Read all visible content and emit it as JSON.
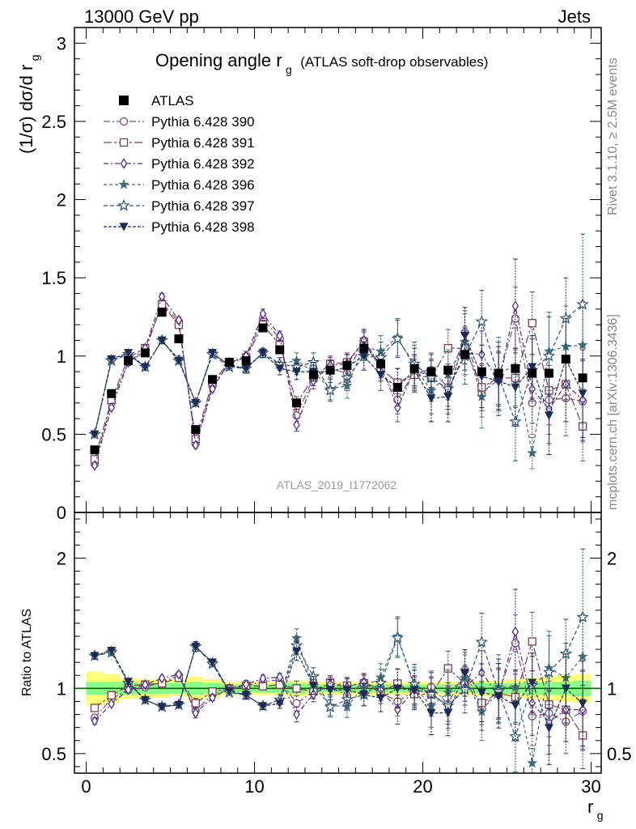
{
  "header": {
    "left": "13000 GeV pp",
    "right": "Jets"
  },
  "title": {
    "main": "Opening angle r",
    "sub": "g",
    "extra": "(ATLAS soft-drop observables)"
  },
  "watermark": "ATLAS_2019_I1772062",
  "side_text": {
    "top": "Rivet 3.1.10, ≥ 2.5M events",
    "bottom": "mcplots.cern.ch [arXiv:1306.3436]"
  },
  "axes": {
    "ylabel_main": "(1/σ) dσ/d r",
    "ylabel_main_sub": "g",
    "ylabel_ratio": "Ratio to ATLAS",
    "xlabel": "r",
    "xlabel_sub": "g"
  },
  "colors": {
    "atlas": "#000000",
    "s390": "#7a4b7c",
    "s391": "#7a3d52",
    "s392": "#4b2e86",
    "s396": "#456b78",
    "s397": "#2e5570",
    "s398": "#1e2a52",
    "band_inner": "#88ff88",
    "band_outer": "#ffff77",
    "ratio_line": "#006600"
  },
  "chart_data": {
    "type": "scatter",
    "x": [
      0.5,
      1.5,
      2.5,
      3.5,
      4.5,
      5.5,
      6.5,
      7.5,
      8.5,
      9.5,
      10.5,
      11.5,
      12.5,
      13.5,
      14.5,
      15.5,
      16.5,
      17.5,
      18.5,
      19.5,
      20.5,
      21.5,
      22.5,
      23.5,
      24.5,
      25.5,
      26.5,
      27.5,
      28.5,
      29.5
    ],
    "xlim": [
      -0.7,
      30.6
    ],
    "main_ylim": [
      0,
      3.1
    ],
    "ratio_ylim": [
      0.35,
      2.35
    ],
    "x_ticks": [
      "0",
      "10",
      "20",
      "30"
    ],
    "main_y_ticks": [
      "0",
      "0.5",
      "1",
      "1.5",
      "2",
      "2.5",
      "3"
    ],
    "ratio_y_ticks": [
      "0.5",
      "1",
      "2"
    ],
    "atlas": {
      "name": "ATLAS",
      "values": [
        0.4,
        0.76,
        0.97,
        1.02,
        1.28,
        1.11,
        0.53,
        0.85,
        0.96,
        0.97,
        1.18,
        1.04,
        0.7,
        0.88,
        0.91,
        0.94,
        1.05,
        0.95,
        0.8,
        0.92,
        0.9,
        0.91,
        1.01,
        0.9,
        0.89,
        0.92,
        0.89,
        0.89,
        0.98,
        0.86
      ],
      "band_inner": [
        0.05,
        0.05,
        0.05,
        0.04,
        0.04,
        0.04,
        0.05,
        0.04,
        0.03,
        0.03,
        0.03,
        0.03,
        0.04,
        0.03,
        0.03,
        0.03,
        0.03,
        0.03,
        0.03,
        0.03,
        0.03,
        0.03,
        0.03,
        0.04,
        0.04,
        0.04,
        0.05,
        0.05,
        0.05,
        0.06
      ],
      "band_outer": [
        0.13,
        0.11,
        0.08,
        0.07,
        0.07,
        0.06,
        0.09,
        0.07,
        0.05,
        0.05,
        0.05,
        0.05,
        0.06,
        0.05,
        0.05,
        0.05,
        0.05,
        0.05,
        0.05,
        0.05,
        0.05,
        0.05,
        0.05,
        0.06,
        0.06,
        0.07,
        0.08,
        0.09,
        0.1,
        0.11
      ]
    },
    "series": [
      {
        "name": "Pythia 6.428 390",
        "marker": "open-circle",
        "dash": "8,3,2,3",
        "values": [
          0.31,
          0.7,
          0.96,
          1.03,
          1.34,
          1.22,
          0.44,
          0.81,
          0.95,
          0.99,
          1.24,
          1.11,
          0.62,
          0.86,
          0.92,
          0.89,
          1.1,
          0.92,
          0.72,
          0.9,
          0.91,
          0.8,
          1.15,
          0.76,
          0.85,
          1.24,
          0.7,
          0.72,
          0.73,
          0.71
        ],
        "errors": [
          0.01,
          0.01,
          0.02,
          0.02,
          0.02,
          0.02,
          0.02,
          0.02,
          0.02,
          0.03,
          0.03,
          0.03,
          0.04,
          0.05,
          0.05,
          0.06,
          0.07,
          0.08,
          0.09,
          0.1,
          0.11,
          0.12,
          0.14,
          0.15,
          0.17,
          0.2,
          0.2,
          0.22,
          0.24,
          0.26
        ]
      },
      {
        "name": "Pythia 6.428 391",
        "marker": "open-square",
        "dash": "10,3,3,3",
        "values": [
          0.34,
          0.72,
          0.99,
          1.05,
          1.33,
          1.2,
          0.47,
          0.83,
          0.96,
          0.99,
          1.2,
          1.07,
          0.7,
          0.86,
          0.95,
          0.96,
          1.09,
          0.92,
          0.83,
          0.88,
          0.86,
          1.05,
          1.05,
          0.8,
          0.86,
          0.86,
          1.21,
          0.78,
          0.82,
          0.55
        ],
        "errors": [
          0.01,
          0.01,
          0.02,
          0.02,
          0.02,
          0.02,
          0.02,
          0.02,
          0.02,
          0.03,
          0.03,
          0.03,
          0.04,
          0.05,
          0.05,
          0.06,
          0.07,
          0.08,
          0.09,
          0.1,
          0.11,
          0.12,
          0.14,
          0.15,
          0.17,
          0.19,
          0.2,
          0.22,
          0.24,
          0.22
        ]
      },
      {
        "name": "Pythia 6.428 392",
        "marker": "open-diamond",
        "dash": "6,3,2,3",
        "values": [
          0.3,
          0.67,
          0.96,
          1.05,
          1.38,
          1.23,
          0.43,
          0.79,
          0.96,
          1.0,
          1.27,
          1.13,
          0.56,
          0.84,
          0.94,
          0.95,
          1.1,
          0.94,
          0.67,
          0.91,
          0.87,
          0.78,
          1.02,
          1.01,
          0.84,
          1.32,
          0.79,
          0.66,
          0.82,
          0.72
        ],
        "errors": [
          0.01,
          0.01,
          0.02,
          0.02,
          0.02,
          0.02,
          0.02,
          0.02,
          0.02,
          0.03,
          0.03,
          0.03,
          0.04,
          0.05,
          0.05,
          0.06,
          0.07,
          0.08,
          0.09,
          0.1,
          0.11,
          0.12,
          0.14,
          0.15,
          0.18,
          0.3,
          0.22,
          0.22,
          0.24,
          0.26
        ]
      },
      {
        "name": "Pythia 6.428 396",
        "marker": "star",
        "dash": "4,3",
        "values": [
          0.5,
          0.98,
          1.01,
          0.93,
          1.1,
          0.98,
          0.7,
          1.02,
          0.94,
          0.92,
          1.02,
          0.95,
          0.97,
          0.9,
          0.79,
          0.81,
          1.06,
          1.03,
          1.12,
          0.93,
          0.78,
          0.88,
          1.09,
          0.74,
          0.9,
          0.93,
          0.38,
          1.03,
          1.06,
          1.07
        ],
        "errors": [
          0.01,
          0.02,
          0.02,
          0.02,
          0.02,
          0.02,
          0.02,
          0.02,
          0.02,
          0.03,
          0.03,
          0.04,
          0.05,
          0.06,
          0.07,
          0.08,
          0.09,
          0.1,
          0.12,
          0.14,
          0.15,
          0.16,
          0.18,
          0.2,
          0.22,
          0.25,
          0.1,
          0.25,
          0.26,
          0.28
        ]
      },
      {
        "name": "Pythia 6.428 397",
        "marker": "open-star",
        "dash": "5,3",
        "values": [
          0.5,
          0.97,
          1.01,
          0.93,
          1.1,
          0.97,
          0.7,
          1.01,
          0.93,
          0.92,
          1.02,
          0.95,
          0.93,
          0.96,
          0.78,
          0.86,
          1.0,
          0.99,
          1.11,
          0.95,
          0.86,
          0.79,
          1.0,
          1.22,
          0.87,
          0.58,
          0.91,
          1.0,
          1.24,
          1.33
        ],
        "errors": [
          0.01,
          0.02,
          0.02,
          0.02,
          0.02,
          0.02,
          0.02,
          0.02,
          0.02,
          0.03,
          0.03,
          0.04,
          0.05,
          0.06,
          0.07,
          0.08,
          0.09,
          0.1,
          0.12,
          0.14,
          0.15,
          0.16,
          0.18,
          0.2,
          0.22,
          0.25,
          0.2,
          0.25,
          0.26,
          0.45
        ]
      },
      {
        "name": "Pythia 6.428 398",
        "marker": "down-triangle",
        "dash": "4,2",
        "values": [
          0.5,
          0.98,
          1.02,
          0.93,
          1.1,
          0.97,
          0.7,
          1.02,
          0.94,
          0.92,
          1.02,
          0.92,
          0.9,
          0.9,
          0.9,
          0.93,
          1.0,
          0.88,
          0.8,
          0.91,
          0.73,
          0.74,
          1.13,
          0.87,
          0.84,
          0.8,
          0.93,
          0.62,
          0.98,
          0.76
        ],
        "errors": [
          0.01,
          0.02,
          0.02,
          0.02,
          0.02,
          0.02,
          0.02,
          0.02,
          0.02,
          0.03,
          0.03,
          0.04,
          0.05,
          0.06,
          0.07,
          0.08,
          0.09,
          0.1,
          0.12,
          0.14,
          0.15,
          0.16,
          0.18,
          0.2,
          0.22,
          0.25,
          0.2,
          0.25,
          0.26,
          0.28
        ]
      }
    ]
  }
}
